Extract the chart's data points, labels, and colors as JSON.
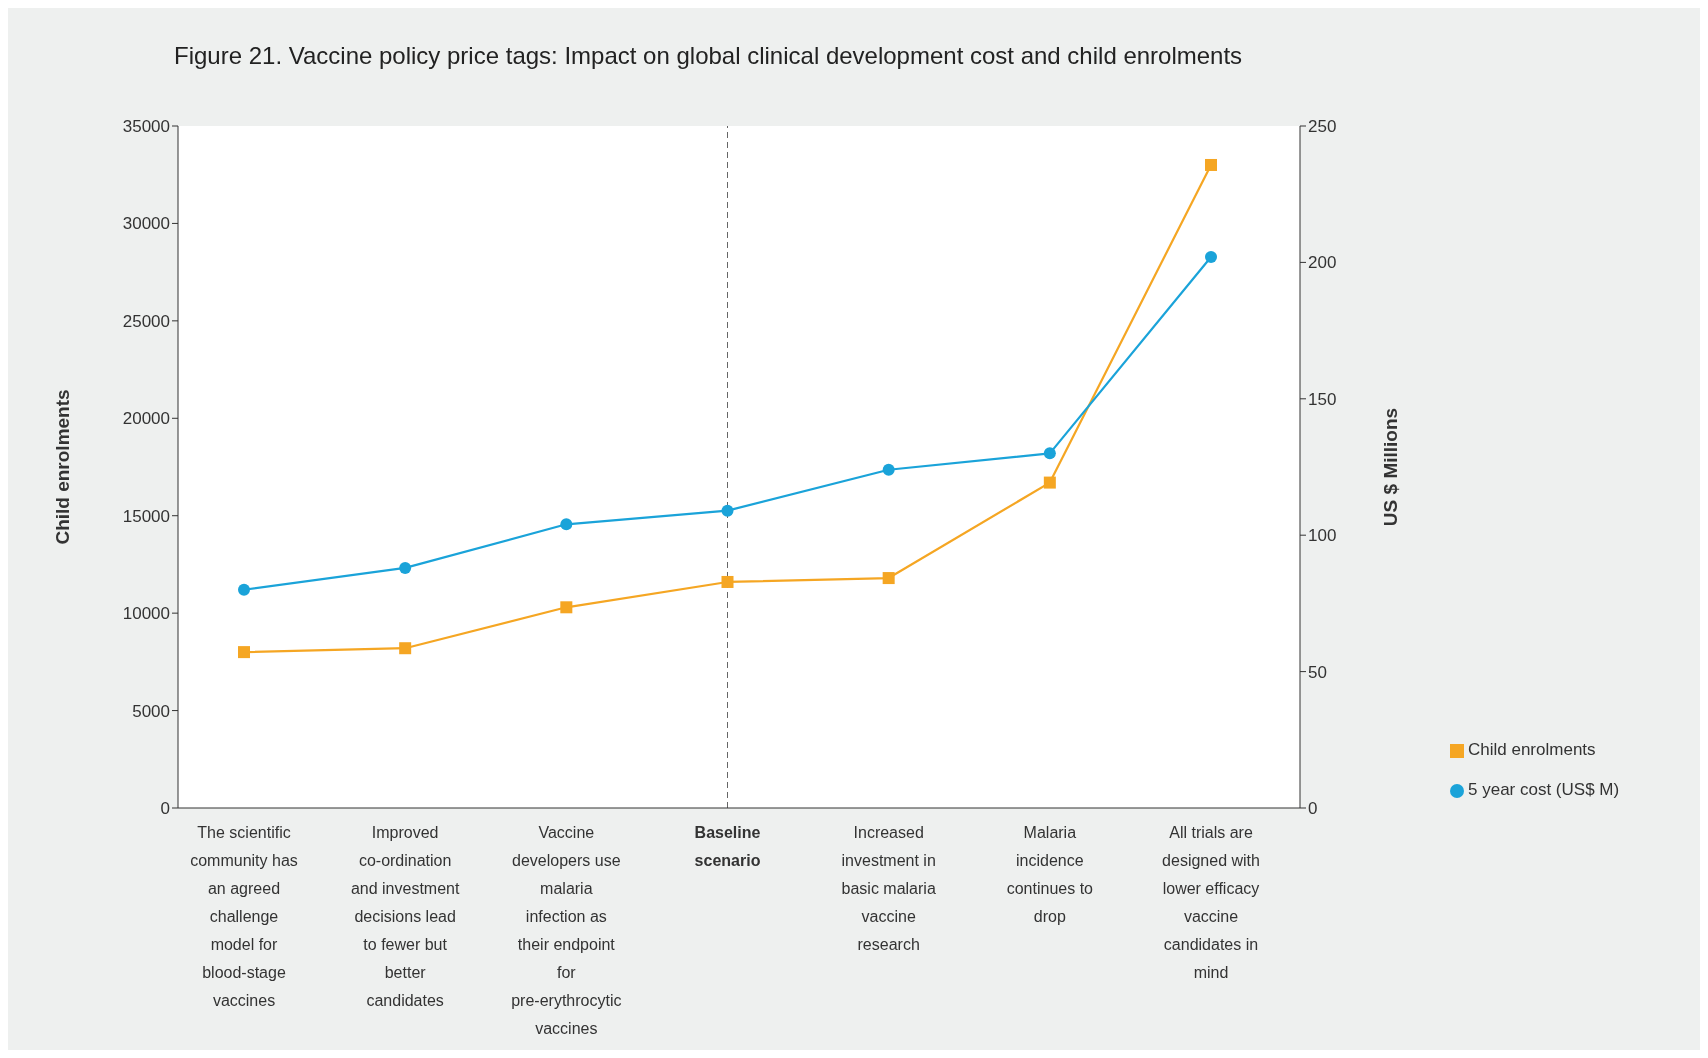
{
  "chart_data": {
    "type": "line",
    "title": "Figure 21. Vaccine policy price tags: Impact on global clinical development cost and child enrolments",
    "ylabel": "Child enrolments",
    "y2label": "US $ Millions",
    "categories": [
      "The scientific community has an agreed challenge model for blood-stage vaccines",
      "Improved co-ordination and investment decisions lead to fewer but better candidates",
      "Vaccine developers use malaria infection as their endpoint for pre-erythrocytic vaccines",
      "Baseline scenario",
      "Increased investment in basic malaria vaccine research",
      "Malaria incidence continues to drop",
      "All trials are designed with lower efficacy vaccine candidates in mind"
    ],
    "series": [
      {
        "name": "Child enrolments",
        "color": "#f5a623",
        "marker": "square",
        "values": [
          8000,
          8200,
          10300,
          11600,
          11800,
          16700,
          33000
        ]
      },
      {
        "name": "5 year cost (US$ M)",
        "color": "#1aa3d9",
        "marker": "circle",
        "axis": "y2",
        "values": [
          80,
          88,
          104,
          109,
          124,
          130,
          202
        ]
      }
    ],
    "ylim": [
      0,
      35000
    ],
    "yticks": [
      0,
      5000,
      10000,
      15000,
      20000,
      25000,
      30000,
      35000
    ],
    "y2lim": [
      0,
      250
    ],
    "y2ticks": [
      0,
      50,
      100,
      150,
      200,
      250
    ],
    "ref_lines": [
      {
        "axis": "x",
        "value": "Baseline scenario",
        "color": "#666666",
        "line_style": "dashed"
      }
    ],
    "grid": false,
    "legend": "bottom right",
    "line_style": "solid"
  }
}
